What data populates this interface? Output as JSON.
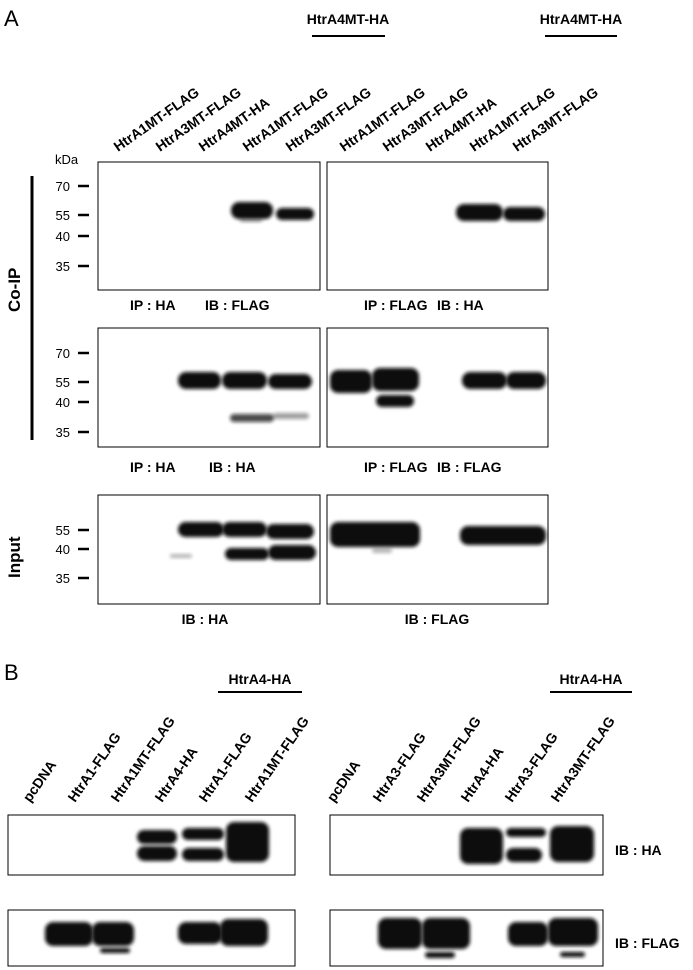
{
  "panel_a": {
    "label": "A",
    "group_headers": [
      "HtrA4MT-HA",
      "HtrA4MT-HA"
    ],
    "lanes_left": [
      "HtrA1MT-FLAG",
      "HtrA3MT-FLAG",
      "HtrA4MT-HA",
      "HtrA1MT-FLAG",
      "HtrA3MT-FLAG"
    ],
    "lanes_right": [
      "HtrA1MT-FLAG",
      "HtrA3MT-FLAG",
      "HtrA4MT-HA",
      "HtrA1MT-FLAG",
      "HtrA3MT-FLAG"
    ],
    "kda_unit": "kDa",
    "side_labels": [
      "Co-IP",
      "Input"
    ],
    "rows": [
      {
        "markers": [
          70,
          55,
          40,
          35
        ],
        "captions": [
          [
            "IP : HA",
            "IB : FLAG"
          ],
          [
            "IP : FLAG",
            "IB : HA"
          ]
        ]
      },
      {
        "markers": [
          70,
          55,
          40,
          35
        ],
        "captions": [
          [
            "IP : HA",
            "IB : HA"
          ],
          [
            "IP : FLAG",
            "IB : FLAG"
          ]
        ]
      },
      {
        "markers": [
          55,
          40,
          35
        ],
        "captions": [
          [
            "IB : HA"
          ],
          [
            "IB : FLAG"
          ]
        ]
      }
    ]
  },
  "panel_b": {
    "label": "B",
    "group_headers": [
      "HtrA4-HA",
      "HtrA4-HA"
    ],
    "lanes_left": [
      "pcDNA",
      "HtrA1-FLAG",
      "HtrA1MT-FLAG",
      "HtrA4-HA",
      "HtrA1-FLAG",
      "HtrA1MT-FLAG"
    ],
    "lanes_right": [
      "pcDNA",
      "HtrA3-FLAG",
      "HtrA3MT-FLAG",
      "HtrA4-HA",
      "HtrA3-FLAG",
      "HtrA3MT-FLAG"
    ],
    "row_labels": [
      "IB : HA",
      "IB : FLAG"
    ]
  }
}
